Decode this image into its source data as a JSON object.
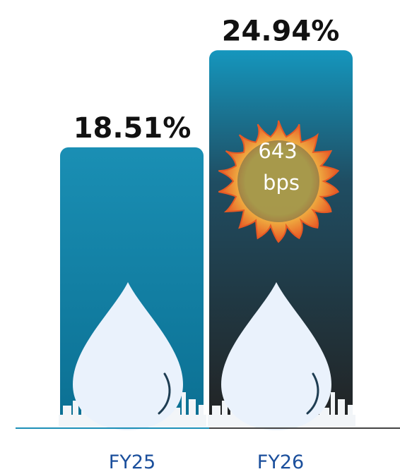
{
  "chart_data": {
    "type": "bar",
    "categories": [
      "FY25",
      "FY26"
    ],
    "values": [
      18.51,
      24.94
    ],
    "value_labels": [
      "18.51%",
      "24.94%"
    ],
    "title": "",
    "xlabel": "",
    "ylabel": "",
    "grid": false,
    "annotation": {
      "value": "643",
      "unit": "bps"
    },
    "colors": {
      "fy25_top": "#1a8fb4",
      "fy25_bottom": "#0b6f92",
      "fy26_top": "#1596bd",
      "fy26_bottom": "#222222",
      "category_text": "#1b4f9c",
      "axis_left": "#1d8fb7",
      "axis_right": "#444444",
      "flame_outer": "#f15a22",
      "flame_inner": "#ffd24a",
      "drop": "#eaf2fc"
    },
    "icons": [
      "oil-drop-icon",
      "refinery-skyline-icon",
      "flame-ring-icon"
    ]
  }
}
